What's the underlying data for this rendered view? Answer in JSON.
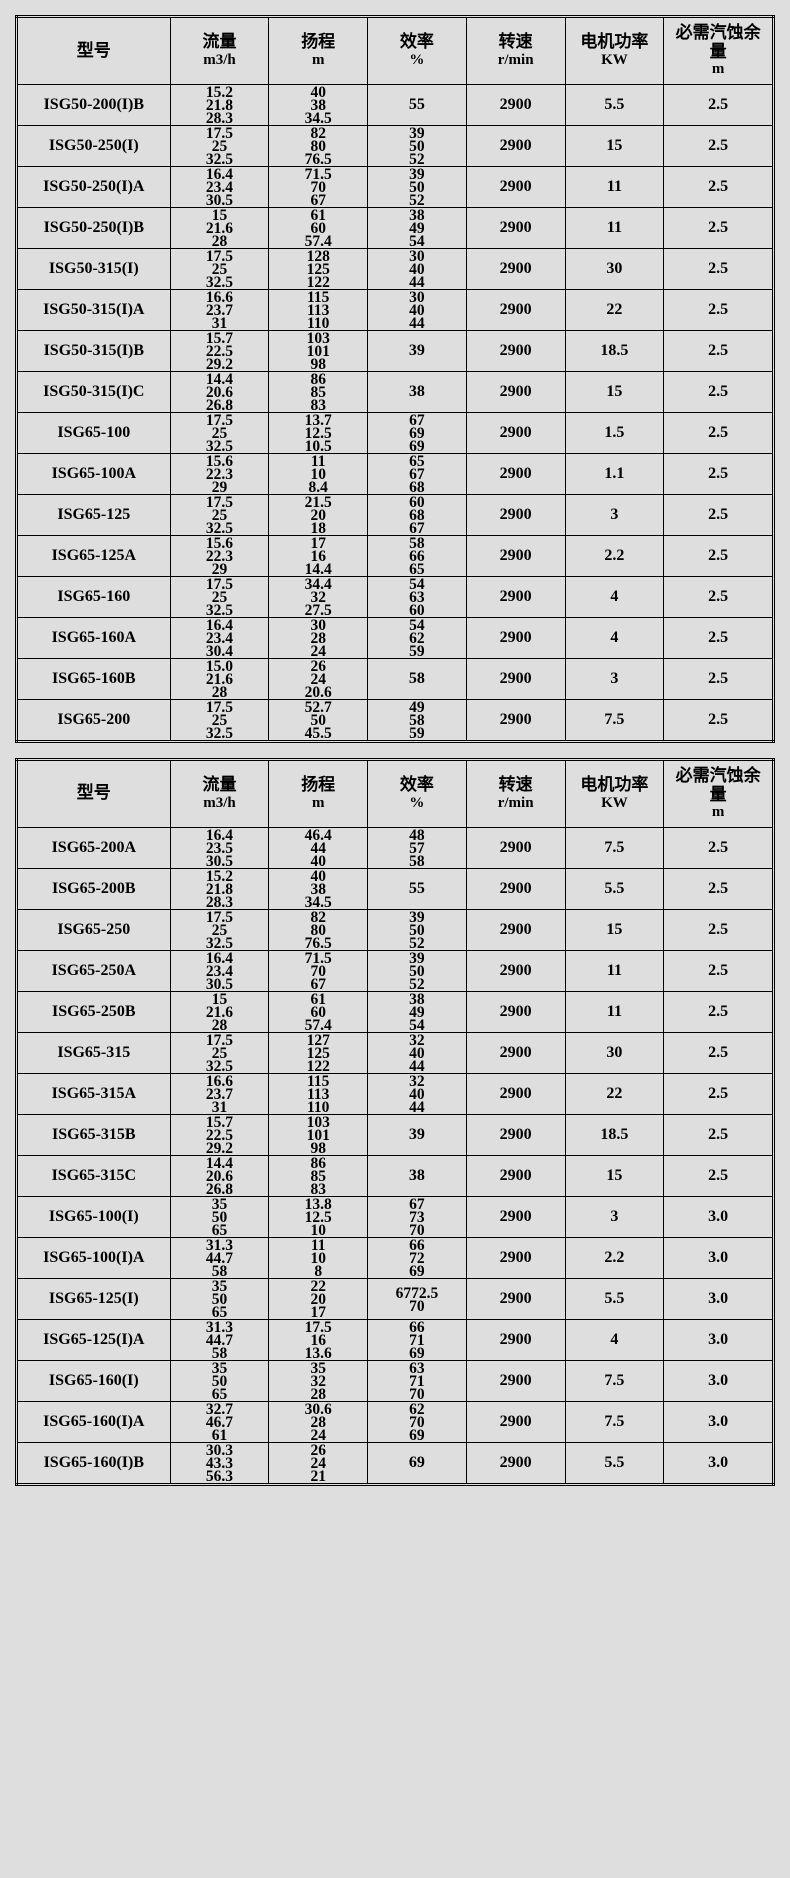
{
  "headers": [
    {
      "label": "型号",
      "unit": ""
    },
    {
      "label": "流量",
      "unit": "m3/h"
    },
    {
      "label": "扬程",
      "unit": "m"
    },
    {
      "label": "效率",
      "unit": "%"
    },
    {
      "label": "转速",
      "unit": "r/min"
    },
    {
      "label": "电机功率",
      "unit": "KW"
    },
    {
      "label": "必需汽蚀余量",
      "unit": "m"
    }
  ],
  "table1": [
    {
      "model": "ISG50-200(I)B",
      "flow": [
        "15.2",
        "21.8",
        "28.3"
      ],
      "head": [
        "40",
        "38",
        "34.5"
      ],
      "eff": [
        "55"
      ],
      "speed": "2900",
      "power": "5.5",
      "npsh": "2.5"
    },
    {
      "model": "ISG50-250(I)",
      "flow": [
        "17.5",
        "25",
        "32.5"
      ],
      "head": [
        "82",
        "80",
        "76.5"
      ],
      "eff": [
        "39",
        "50",
        "52"
      ],
      "speed": "2900",
      "power": "15",
      "npsh": "2.5"
    },
    {
      "model": "ISG50-250(I)A",
      "flow": [
        "16.4",
        "23.4",
        "30.5"
      ],
      "head": [
        "71.5",
        "70",
        "67"
      ],
      "eff": [
        "39",
        "50",
        "52"
      ],
      "speed": "2900",
      "power": "11",
      "npsh": "2.5"
    },
    {
      "model": "ISG50-250(I)B",
      "flow": [
        "15",
        "21.6",
        "28"
      ],
      "head": [
        "61",
        "60",
        "57.4"
      ],
      "eff": [
        "38",
        "49",
        "54"
      ],
      "speed": "2900",
      "power": "11",
      "npsh": "2.5"
    },
    {
      "model": "ISG50-315(I)",
      "flow": [
        "17.5",
        "25",
        "32.5"
      ],
      "head": [
        "128",
        "125",
        "122"
      ],
      "eff": [
        "30",
        "40",
        "44"
      ],
      "speed": "2900",
      "power": "30",
      "npsh": "2.5"
    },
    {
      "model": "ISG50-315(I)A",
      "flow": [
        "16.6",
        "23.7",
        "31"
      ],
      "head": [
        "115",
        "113",
        "110"
      ],
      "eff": [
        "30",
        "40",
        "44"
      ],
      "speed": "2900",
      "power": "22",
      "npsh": "2.5"
    },
    {
      "model": "ISG50-315(I)B",
      "flow": [
        "15.7",
        "22.5",
        "29.2"
      ],
      "head": [
        "103",
        "101",
        "98"
      ],
      "eff": [
        "39"
      ],
      "speed": "2900",
      "power": "18.5",
      "npsh": "2.5"
    },
    {
      "model": "ISG50-315(I)C",
      "flow": [
        "14.4",
        "20.6",
        "26.8"
      ],
      "head": [
        "86",
        "85",
        "83"
      ],
      "eff": [
        "38"
      ],
      "speed": "2900",
      "power": "15",
      "npsh": "2.5"
    },
    {
      "model": "ISG65-100",
      "flow": [
        "17.5",
        "25",
        "32.5"
      ],
      "head": [
        "13.7",
        "12.5",
        "10.5"
      ],
      "eff": [
        "67",
        "69",
        "69"
      ],
      "speed": "2900",
      "power": "1.5",
      "npsh": "2.5"
    },
    {
      "model": "ISG65-100A",
      "flow": [
        "15.6",
        "22.3",
        "29"
      ],
      "head": [
        "11",
        "10",
        "8.4"
      ],
      "eff": [
        "65",
        "67",
        "68"
      ],
      "speed": "2900",
      "power": "1.1",
      "npsh": "2.5"
    },
    {
      "model": "ISG65-125",
      "flow": [
        "17.5",
        "25",
        "32.5"
      ],
      "head": [
        "21.5",
        "20",
        "18"
      ],
      "eff": [
        "60",
        "68",
        "67"
      ],
      "speed": "2900",
      "power": "3",
      "npsh": "2.5"
    },
    {
      "model": "ISG65-125A",
      "flow": [
        "15.6",
        "22.3",
        "29"
      ],
      "head": [
        "17",
        "16",
        "14.4"
      ],
      "eff": [
        "58",
        "66",
        "65"
      ],
      "speed": "2900",
      "power": "2.2",
      "npsh": "2.5"
    },
    {
      "model": "ISG65-160",
      "flow": [
        "17.5",
        "25",
        "32.5"
      ],
      "head": [
        "34.4",
        "32",
        "27.5"
      ],
      "eff": [
        "54",
        "63",
        "60"
      ],
      "speed": "2900",
      "power": "4",
      "npsh": "2.5"
    },
    {
      "model": "ISG65-160A",
      "flow": [
        "16.4",
        "23.4",
        "30.4"
      ],
      "head": [
        "30",
        "28",
        "24"
      ],
      "eff": [
        "54",
        "62",
        "59"
      ],
      "speed": "2900",
      "power": "4",
      "npsh": "2.5"
    },
    {
      "model": "ISG65-160B",
      "flow": [
        "15.0",
        "21.6",
        "28"
      ],
      "head": [
        "26",
        "24",
        "20.6"
      ],
      "eff": [
        "58"
      ],
      "speed": "2900",
      "power": "3",
      "npsh": "2.5"
    },
    {
      "model": "ISG65-200",
      "flow": [
        "17.5",
        "25",
        "32.5"
      ],
      "head": [
        "52.7",
        "50",
        "45.5"
      ],
      "eff": [
        "49",
        "58",
        "59"
      ],
      "speed": "2900",
      "power": "7.5",
      "npsh": "2.5"
    }
  ],
  "table2": [
    {
      "model": "ISG65-200A",
      "flow": [
        "16.4",
        "23.5",
        "30.5"
      ],
      "head": [
        "46.4",
        "44",
        "40"
      ],
      "eff": [
        "48",
        "57",
        "58"
      ],
      "speed": "2900",
      "power": "7.5",
      "npsh": "2.5"
    },
    {
      "model": "ISG65-200B",
      "flow": [
        "15.2",
        "21.8",
        "28.3"
      ],
      "head": [
        "40",
        "38",
        "34.5"
      ],
      "eff": [
        "55"
      ],
      "speed": "2900",
      "power": "5.5",
      "npsh": "2.5"
    },
    {
      "model": "ISG65-250",
      "flow": [
        "17.5",
        "25",
        "32.5"
      ],
      "head": [
        "82",
        "80",
        "76.5"
      ],
      "eff": [
        "39",
        "50",
        "52"
      ],
      "speed": "2900",
      "power": "15",
      "npsh": "2.5"
    },
    {
      "model": "ISG65-250A",
      "flow": [
        "16.4",
        "23.4",
        "30.5"
      ],
      "head": [
        "71.5",
        "70",
        "67"
      ],
      "eff": [
        "39",
        "50",
        "52"
      ],
      "speed": "2900",
      "power": "11",
      "npsh": "2.5"
    },
    {
      "model": "ISG65-250B",
      "flow": [
        "15",
        "21.6",
        "28"
      ],
      "head": [
        "61",
        "60",
        "57.4"
      ],
      "eff": [
        "38",
        "49",
        "54"
      ],
      "speed": "2900",
      "power": "11",
      "npsh": "2.5"
    },
    {
      "model": "ISG65-315",
      "flow": [
        "17.5",
        "25",
        "32.5"
      ],
      "head": [
        "127",
        "125",
        "122"
      ],
      "eff": [
        "32",
        "40",
        "44"
      ],
      "speed": "2900",
      "power": "30",
      "npsh": "2.5"
    },
    {
      "model": "ISG65-315A",
      "flow": [
        "16.6",
        "23.7",
        "31"
      ],
      "head": [
        "115",
        "113",
        "110"
      ],
      "eff": [
        "32",
        "40",
        "44"
      ],
      "speed": "2900",
      "power": "22",
      "npsh": "2.5"
    },
    {
      "model": "ISG65-315B",
      "flow": [
        "15.7",
        "22.5",
        "29.2"
      ],
      "head": [
        "103",
        "101",
        "98"
      ],
      "eff": [
        "39"
      ],
      "speed": "2900",
      "power": "18.5",
      "npsh": "2.5"
    },
    {
      "model": "ISG65-315C",
      "flow": [
        "14.4",
        "20.6",
        "26.8"
      ],
      "head": [
        "86",
        "85",
        "83"
      ],
      "eff": [
        "38"
      ],
      "speed": "2900",
      "power": "15",
      "npsh": "2.5"
    },
    {
      "model": "ISG65-100(I)",
      "flow": [
        "35",
        "50",
        "65"
      ],
      "head": [
        "13.8",
        "12.5",
        "10"
      ],
      "eff": [
        "67",
        "73",
        "70"
      ],
      "speed": "2900",
      "power": "3",
      "npsh": "3.0"
    },
    {
      "model": "ISG65-100(I)A",
      "flow": [
        "31.3",
        "44.7",
        "58"
      ],
      "head": [
        "11",
        "10",
        "8"
      ],
      "eff": [
        "66",
        "72",
        "69"
      ],
      "speed": "2900",
      "power": "2.2",
      "npsh": "3.0"
    },
    {
      "model": "ISG65-125(I)",
      "flow": [
        "35",
        "50",
        "65"
      ],
      "head": [
        "22",
        "20",
        "17"
      ],
      "eff": [
        "6772.5",
        "70"
      ],
      "speed": "2900",
      "power": "5.5",
      "npsh": "3.0"
    },
    {
      "model": "ISG65-125(I)A",
      "flow": [
        "31.3",
        "44.7",
        "58"
      ],
      "head": [
        "17.5",
        "16",
        "13.6"
      ],
      "eff": [
        "66",
        "71",
        "69"
      ],
      "speed": "2900",
      "power": "4",
      "npsh": "3.0"
    },
    {
      "model": "ISG65-160(I)",
      "flow": [
        "35",
        "50",
        "65"
      ],
      "head": [
        "35",
        "32",
        "28"
      ],
      "eff": [
        "63",
        "71",
        "70"
      ],
      "speed": "2900",
      "power": "7.5",
      "npsh": "3.0"
    },
    {
      "model": "ISG65-160(I)A",
      "flow": [
        "32.7",
        "46.7",
        "61"
      ],
      "head": [
        "30.6",
        "28",
        "24"
      ],
      "eff": [
        "62",
        "70",
        "69"
      ],
      "speed": "2900",
      "power": "7.5",
      "npsh": "3.0"
    },
    {
      "model": "ISG65-160(I)B",
      "flow": [
        "30.3",
        "43.3",
        "56.3"
      ],
      "head": [
        "26",
        "24",
        "21"
      ],
      "eff": [
        "69"
      ],
      "speed": "2900",
      "power": "5.5",
      "npsh": "3.0"
    }
  ]
}
